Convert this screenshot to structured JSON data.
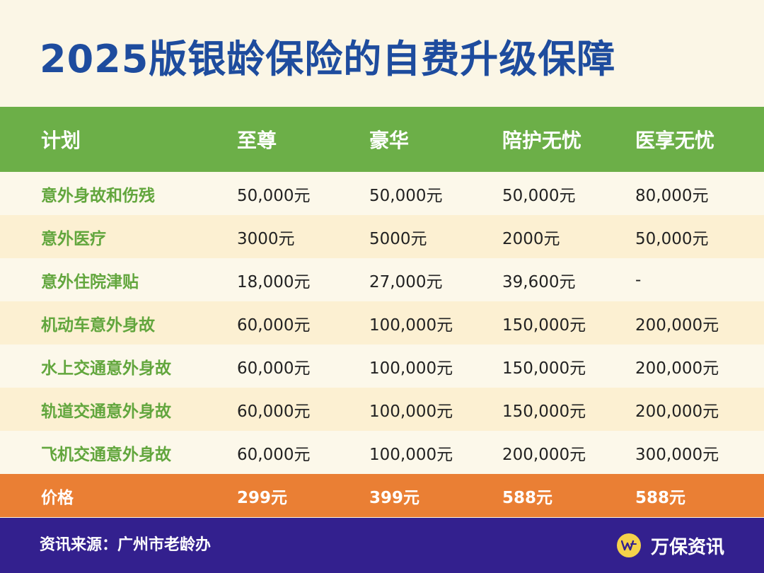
{
  "title": "2025版银龄保险的自费升级保障",
  "table": {
    "headers": [
      "计划",
      "至尊",
      "豪华",
      "陪护无忧",
      "医享无忧"
    ],
    "rows": [
      [
        "意外身故和伤残",
        "50,000元",
        "50,000元",
        "50,000元",
        "80,000元"
      ],
      [
        "意外医疗",
        "3000元",
        "5000元",
        "2000元",
        "50,000元"
      ],
      [
        "意外住院津贴",
        "18,000元",
        "27,000元",
        "39,600元",
        "-"
      ],
      [
        "机动车意外身故",
        "60,000元",
        "100,000元",
        "150,000元",
        "200,000元"
      ],
      [
        "水上交通意外身故",
        "60,000元",
        "100,000元",
        "150,000元",
        "200,000元"
      ],
      [
        "轨道交通意外身故",
        "60,000元",
        "100,000元",
        "150,000元",
        "200,000元"
      ],
      [
        "飞机交通意外身故",
        "60,000元",
        "100,000元",
        "200,000元",
        "300,000元"
      ]
    ],
    "price_row": [
      "价格",
      "299元",
      "399元",
      "588元",
      "588元"
    ]
  },
  "footer": {
    "source": "资讯来源：广州市老龄办",
    "brand": "万保资讯",
    "logo_icon": "wanbao-logo-icon"
  },
  "colors": {
    "title": "#1e4c9e",
    "header_bg": "#6caf48",
    "row_label": "#62a63d",
    "price_bg": "#ea7f34",
    "footer_bg": "#33208e",
    "logo_bg": "#f5d24a"
  }
}
